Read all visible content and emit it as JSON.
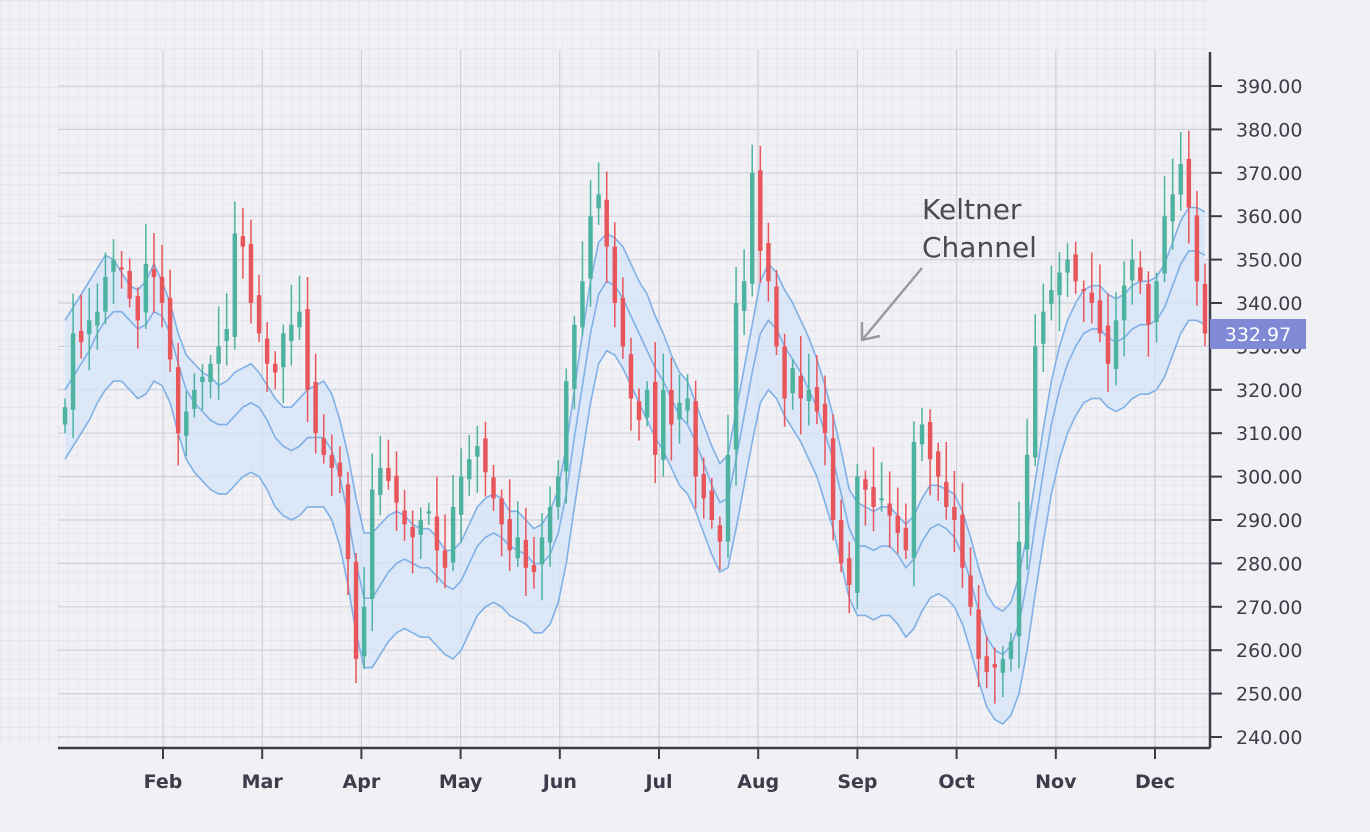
{
  "chart_data": {
    "type": "candlestick",
    "title": "",
    "xlabel": "",
    "ylabel": "",
    "ylim": [
      237,
      397
    ],
    "yticks": [
      240,
      250,
      260,
      270,
      280,
      290,
      300,
      310,
      320,
      330,
      340,
      350,
      360,
      370,
      380,
      390
    ],
    "ytick_labels": [
      "240.00",
      "250.00",
      "260.00",
      "270.00",
      "280.00",
      "290.00",
      "300.00",
      "310.00",
      "320.00",
      "330.00",
      "340.00",
      "350.00",
      "360.00",
      "370.00",
      "380.00",
      "390.00"
    ],
    "months": [
      "Feb",
      "Mar",
      "Apr",
      "May",
      "Jun",
      "Jul",
      "Aug",
      "Sep",
      "Oct",
      "Nov",
      "Dec"
    ],
    "grid": true,
    "y_axis_side": "right",
    "colors": {
      "up": "#4db3a0",
      "down": "#e8555a",
      "band": "#7fb0e6",
      "band_fill": "#d6e4f8",
      "axis": "#3c3c48",
      "price_tag": "#8089d6"
    },
    "closes": [
      316,
      333,
      331,
      336,
      338,
      346,
      350,
      348,
      341,
      336,
      349,
      346,
      340,
      327,
      310,
      315,
      320,
      323,
      326,
      330,
      334,
      356,
      353,
      340,
      333,
      326,
      324,
      333,
      335,
      338,
      320,
      310,
      305,
      302,
      300,
      281,
      258,
      270,
      297,
      302,
      299,
      294,
      289,
      286,
      290,
      292,
      283,
      279,
      293,
      300,
      304,
      307,
      301,
      295,
      289,
      283,
      286,
      279,
      278,
      286,
      293,
      300,
      322,
      335,
      345,
      360,
      365,
      353,
      340,
      330,
      318,
      313,
      320,
      305,
      320,
      312,
      317,
      318,
      300,
      295,
      290,
      285,
      305,
      340,
      345,
      370,
      352,
      345,
      330,
      318,
      325,
      318,
      320,
      315,
      310,
      290,
      280,
      275,
      300,
      297,
      293,
      295,
      291,
      287,
      283,
      308,
      312,
      304,
      300,
      293,
      290,
      279,
      270,
      258,
      255,
      256,
      258,
      262,
      285,
      305,
      330,
      338,
      343,
      347,
      350,
      345,
      343,
      340,
      333,
      326,
      336,
      344,
      350,
      345,
      335,
      345,
      360,
      365,
      372,
      362,
      345,
      332.97
    ],
    "keltner_upper": [
      336,
      339,
      342,
      345,
      348,
      351,
      350,
      347,
      344,
      343,
      345,
      349,
      345,
      340,
      333,
      328,
      326,
      324,
      323,
      321,
      322,
      324,
      325,
      326,
      324,
      321,
      318,
      316,
      316,
      318,
      320,
      321,
      322,
      319,
      313,
      305,
      295,
      287,
      287,
      289,
      291,
      292,
      291,
      289,
      288,
      288,
      286,
      283,
      283,
      285,
      289,
      293,
      295,
      296,
      295,
      292,
      292,
      290,
      288,
      289,
      292,
      297,
      307,
      320,
      333,
      345,
      354,
      356,
      355,
      353,
      349,
      345,
      342,
      337,
      333,
      328,
      324,
      322,
      317,
      312,
      307,
      303,
      305,
      315,
      325,
      335,
      345,
      349,
      347,
      343,
      340,
      336,
      332,
      327,
      321,
      314,
      306,
      297,
      294,
      293,
      292,
      293,
      293,
      291,
      289,
      291,
      295,
      298,
      298,
      297,
      296,
      292,
      286,
      279,
      273,
      270,
      269,
      271,
      277,
      287,
      299,
      311,
      322,
      330,
      336,
      340,
      343,
      344,
      344,
      342,
      341,
      342,
      344,
      345,
      345,
      346,
      349,
      354,
      359,
      362,
      362,
      361
    ],
    "keltner_middle": [
      320,
      323,
      326,
      329,
      333,
      336,
      338,
      338,
      336,
      334,
      335,
      338,
      337,
      333,
      326,
      320,
      317,
      315,
      313,
      312,
      312,
      314,
      316,
      317,
      316,
      313,
      309,
      307,
      306,
      307,
      309,
      309,
      309,
      306,
      300,
      291,
      280,
      272,
      272,
      275,
      278,
      280,
      281,
      280,
      279,
      279,
      277,
      275,
      274,
      276,
      280,
      284,
      286,
      287,
      286,
      284,
      283,
      282,
      280,
      280,
      282,
      287,
      296,
      309,
      321,
      333,
      342,
      345,
      344,
      341,
      337,
      333,
      329,
      325,
      322,
      318,
      314,
      312,
      308,
      303,
      298,
      294,
      295,
      304,
      314,
      324,
      333,
      336,
      334,
      330,
      327,
      324,
      320,
      316,
      310,
      304,
      296,
      288,
      284,
      284,
      283,
      284,
      284,
      282,
      279,
      281,
      285,
      288,
      289,
      288,
      286,
      282,
      276,
      269,
      263,
      260,
      259,
      261,
      266,
      276,
      289,
      301,
      312,
      320,
      326,
      330,
      333,
      334,
      334,
      332,
      331,
      332,
      334,
      335,
      335,
      336,
      339,
      344,
      349,
      352,
      352,
      351
    ],
    "keltner_lower": [
      304,
      307,
      310,
      313,
      317,
      320,
      322,
      322,
      320,
      318,
      319,
      322,
      321,
      317,
      310,
      304,
      301,
      299,
      297,
      296,
      296,
      298,
      300,
      301,
      300,
      297,
      293,
      291,
      290,
      291,
      293,
      293,
      293,
      290,
      284,
      275,
      264,
      256,
      256,
      259,
      262,
      264,
      265,
      264,
      263,
      263,
      261,
      259,
      258,
      260,
      264,
      268,
      270,
      271,
      270,
      268,
      267,
      266,
      264,
      264,
      266,
      271,
      280,
      293,
      305,
      317,
      326,
      329,
      328,
      325,
      321,
      317,
      313,
      309,
      306,
      302,
      298,
      296,
      292,
      287,
      282,
      278,
      279,
      288,
      298,
      308,
      317,
      320,
      318,
      314,
      311,
      308,
      304,
      300,
      294,
      288,
      280,
      272,
      268,
      268,
      267,
      268,
      268,
      266,
      263,
      265,
      269,
      272,
      273,
      272,
      270,
      266,
      260,
      253,
      247,
      244,
      243,
      245,
      250,
      260,
      273,
      285,
      296,
      304,
      310,
      314,
      317,
      318,
      318,
      316,
      315,
      316,
      318,
      319,
      319,
      320,
      323,
      328,
      333,
      336,
      336,
      335
    ],
    "last_price": "332.97",
    "annotation": "Keltner Channel",
    "annotation_lines": [
      "Keltner",
      "Channel"
    ]
  }
}
